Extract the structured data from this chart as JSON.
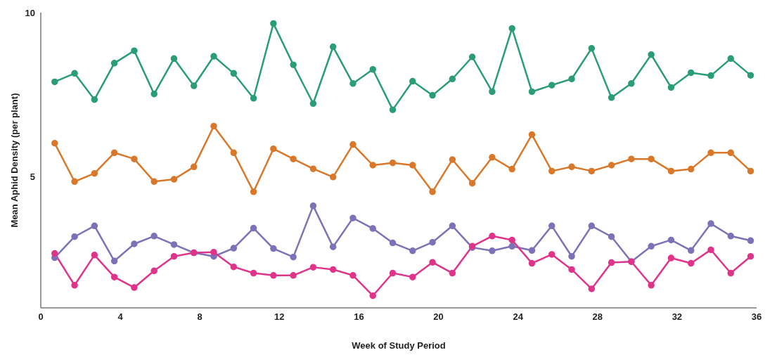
{
  "chart_data": {
    "type": "line",
    "xlabel": "Week of Study Period",
    "ylabel": "Mean Aphid Density (per plant)",
    "x": [
      0.7,
      1.7,
      2.7,
      3.7,
      4.7,
      5.7,
      6.7,
      7.7,
      8.7,
      9.7,
      10.7,
      11.7,
      12.7,
      13.7,
      14.7,
      15.7,
      16.7,
      17.7,
      18.7,
      19.7,
      20.7,
      21.7,
      22.7,
      23.7,
      24.7,
      25.7,
      26.7,
      27.7,
      28.7,
      29.7,
      30.7,
      31.7,
      32.7,
      33.7,
      34.7,
      35.7
    ],
    "series": [
      {
        "color": "#2a9d78",
        "values": [
          7.89,
          8.15,
          7.35,
          8.46,
          8.84,
          7.52,
          8.6,
          7.77,
          8.67,
          8.15,
          7.39,
          9.67,
          8.41,
          7.23,
          8.96,
          7.84,
          8.27,
          7.04,
          7.91,
          7.48,
          7.98,
          8.65,
          7.59,
          9.52,
          7.59,
          7.79,
          7.98,
          8.91,
          7.41,
          7.84,
          8.72,
          7.72,
          8.17,
          8.08,
          8.6,
          8.09
        ]
      },
      {
        "color": "#d9782a",
        "values": [
          6.02,
          4.85,
          5.1,
          5.73,
          5.54,
          4.85,
          4.92,
          5.3,
          6.54,
          5.73,
          4.54,
          5.85,
          5.54,
          5.24,
          4.99,
          5.98,
          5.35,
          5.42,
          5.35,
          4.54,
          5.52,
          4.8,
          5.59,
          5.23,
          6.28,
          5.17,
          5.3,
          5.17,
          5.35,
          5.54,
          5.54,
          5.17,
          5.23,
          5.73,
          5.73,
          5.17
        ]
      },
      {
        "color": "#7b72b8",
        "values": [
          2.53,
          3.17,
          3.5,
          2.43,
          2.95,
          3.19,
          2.93,
          2.68,
          2.57,
          2.82,
          3.43,
          2.81,
          2.55,
          4.11,
          2.86,
          3.74,
          3.42,
          2.98,
          2.74,
          3.0,
          3.5,
          2.84,
          2.74,
          2.88,
          2.75,
          3.5,
          2.57,
          3.5,
          3.17,
          2.41,
          2.88,
          3.07,
          2.75,
          3.57,
          3.19,
          3.05
        ]
      },
      {
        "color": "#e0338a",
        "values": [
          2.66,
          1.69,
          2.61,
          1.94,
          1.62,
          2.13,
          2.57,
          2.68,
          2.7,
          2.25,
          2.06,
          1.99,
          1.99,
          2.24,
          2.17,
          1.99,
          1.37,
          2.06,
          1.94,
          2.39,
          2.06,
          2.88,
          3.19,
          3.07,
          2.36,
          2.63,
          2.17,
          1.58,
          2.38,
          2.41,
          1.69,
          2.52,
          2.36,
          2.77,
          2.06,
          2.57
        ]
      }
    ],
    "xlim": [
      0,
      36
    ],
    "xticks": [
      0,
      4,
      8,
      12,
      16,
      20,
      24,
      28,
      32,
      36
    ],
    "ylim": [
      1,
      10
    ],
    "yticks": [
      5,
      10
    ],
    "grid": false,
    "legend": false,
    "marker": "circle",
    "line_style": "solid"
  }
}
